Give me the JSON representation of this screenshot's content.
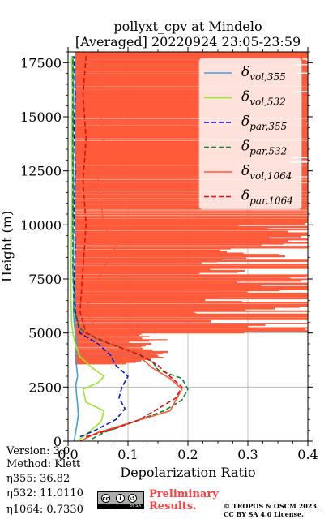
{
  "chart_data": {
    "type": "line",
    "title": "pollyxt_cpv at Mindelo",
    "subtitle": "[Averaged] 20220924 23:05-23:59",
    "xlabel": "Depolarization Ratio",
    "ylabel": "Height (m)",
    "xlim": [
      0,
      0.4
    ],
    "ylim": [
      0,
      18000
    ],
    "xticks": [
      0.0,
      0.1,
      0.2,
      0.3,
      0.4
    ],
    "xtick_labels": [
      "0.0",
      "0.1",
      "0.2",
      "0.3",
      "0.4"
    ],
    "yticks": [
      0,
      2500,
      5000,
      7500,
      10000,
      12500,
      15000,
      17500
    ],
    "ytick_labels": [
      "0",
      "2500",
      "5000",
      "7500",
      "10000",
      "12500",
      "15000",
      "17500"
    ],
    "grid": true,
    "legend_position": "top-right",
    "series": [
      {
        "name": "δvol,355",
        "legend_main": "δ",
        "legend_sub": "vol,355",
        "color": "#3fa0e0",
        "dash": "solid",
        "points": [
          [
            0.01,
            0
          ],
          [
            0.012,
            300
          ],
          [
            0.015,
            800
          ],
          [
            0.017,
            1200
          ],
          [
            0.016,
            1700
          ],
          [
            0.014,
            2200
          ],
          [
            0.013,
            2600
          ],
          [
            0.016,
            3000
          ],
          [
            0.014,
            3500
          ],
          [
            0.013,
            4000
          ],
          [
            0.015,
            4500
          ],
          [
            0.012,
            5000
          ],
          [
            0.01,
            5500
          ],
          [
            0.009,
            6000
          ],
          [
            0.01,
            7000
          ],
          [
            0.008,
            8000
          ],
          [
            0.009,
            9000
          ],
          [
            0.008,
            10000
          ],
          [
            0.009,
            12000
          ],
          [
            0.008,
            14000
          ],
          [
            0.009,
            16000
          ],
          [
            0.008,
            17800
          ]
        ]
      },
      {
        "name": "δvol,532",
        "legend_main": "δ",
        "legend_sub": "vol,532",
        "color": "#9ae82a",
        "dash": "solid",
        "points": [
          [
            0.015,
            0
          ],
          [
            0.03,
            300
          ],
          [
            0.055,
            900
          ],
          [
            0.06,
            1400
          ],
          [
            0.03,
            1800
          ],
          [
            0.025,
            2400
          ],
          [
            0.05,
            2700
          ],
          [
            0.06,
            3000
          ],
          [
            0.04,
            3400
          ],
          [
            0.02,
            3900
          ],
          [
            0.012,
            4500
          ],
          [
            0.008,
            5000
          ],
          [
            0.006,
            5500
          ],
          [
            0.005,
            6500
          ],
          [
            0.005,
            8000
          ],
          [
            0.006,
            10000
          ],
          [
            0.007,
            12000
          ],
          [
            0.006,
            14000
          ],
          [
            0.007,
            16000
          ],
          [
            0.006,
            17800
          ]
        ]
      },
      {
        "name": "δpar,355",
        "legend_main": "δ",
        "legend_sub": "par,355",
        "color": "#0018d0",
        "dash": "6,3",
        "points": [
          [
            0.02,
            200
          ],
          [
            0.045,
            500
          ],
          [
            0.08,
            1000
          ],
          [
            0.095,
            1500
          ],
          [
            0.085,
            2000
          ],
          [
            0.09,
            2500
          ],
          [
            0.1,
            3000
          ],
          [
            0.08,
            3500
          ],
          [
            0.07,
            4000
          ],
          [
            0.05,
            4500
          ],
          [
            0.02,
            5000
          ],
          [
            0.012,
            6000
          ],
          [
            0.01,
            7500
          ],
          [
            0.012,
            9000
          ],
          [
            0.01,
            10500
          ],
          [
            0.012,
            12500
          ],
          [
            0.01,
            14500
          ],
          [
            0.012,
            16000
          ],
          [
            0.01,
            17800
          ]
        ]
      },
      {
        "name": "δpar,532",
        "legend_main": "δ",
        "legend_sub": "par,532",
        "color": "#108030",
        "dash": "6,3",
        "points": [
          [
            0.04,
            100
          ],
          [
            0.06,
            400
          ],
          [
            0.11,
            900
          ],
          [
            0.16,
            1400
          ],
          [
            0.19,
            1900
          ],
          [
            0.2,
            2400
          ],
          [
            0.19,
            2900
          ],
          [
            0.15,
            3300
          ],
          [
            0.14,
            3700
          ],
          [
            0.1,
            4200
          ],
          [
            0.05,
            4700
          ],
          [
            0.02,
            5200
          ],
          [
            0.01,
            6000
          ],
          [
            0.008,
            8000
          ],
          [
            0.008,
            10000
          ],
          [
            0.008,
            12000
          ],
          [
            0.008,
            14000
          ],
          [
            0.008,
            16000
          ],
          [
            0.008,
            17800
          ]
        ]
      },
      {
        "name": "δvol,1064",
        "legend_main": "δ",
        "legend_sub": "vol,1064",
        "color": "#ff5a3a",
        "dash": "solid",
        "points": [
          [
            0.02,
            0
          ],
          [
            0.05,
            400
          ],
          [
            0.11,
            900
          ],
          [
            0.17,
            1400
          ],
          [
            0.18,
            1900
          ],
          [
            0.19,
            2400
          ],
          [
            0.17,
            2900
          ],
          [
            0.14,
            3400
          ],
          [
            0.12,
            3900
          ],
          [
            0.09,
            4400
          ],
          [
            0.05,
            5000
          ],
          [
            0.03,
            6000
          ],
          [
            0.04,
            7000
          ],
          [
            0.06,
            8000
          ],
          [
            0.08,
            9000
          ],
          [
            0.06,
            10000
          ],
          [
            0.05,
            12000
          ],
          [
            0.06,
            14000
          ],
          [
            0.05,
            16000
          ],
          [
            0.06,
            17800
          ]
        ]
      },
      {
        "name": "δpar,1064",
        "legend_main": "δ",
        "legend_sub": "par,1064",
        "color": "#e01010",
        "dash": "6,3",
        "points": [
          [
            0.03,
            200
          ],
          [
            0.08,
            600
          ],
          [
            0.12,
            1000
          ],
          [
            0.15,
            1500
          ],
          [
            0.18,
            2000
          ],
          [
            0.19,
            2500
          ],
          [
            0.17,
            3000
          ],
          [
            0.15,
            3500
          ],
          [
            0.12,
            4000
          ],
          [
            0.07,
            4500
          ],
          [
            0.03,
            5000
          ],
          [
            0.02,
            6000
          ],
          [
            0.025,
            8000
          ],
          [
            0.03,
            10000
          ],
          [
            0.025,
            12000
          ],
          [
            0.03,
            14000
          ],
          [
            0.025,
            16000
          ],
          [
            0.03,
            17800
          ]
        ]
      }
    ]
  },
  "info": {
    "version": "Version: 3.0",
    "method": "Method: Klett",
    "eta355": "η355:  36.82",
    "eta532": "η532: 11.0110",
    "eta1064": "η1064: 0.7330"
  },
  "footer": {
    "cc_label": "BY SA",
    "prelim_line1": "Preliminary",
    "prelim_line2": "Results.",
    "credit_line1": "© TROPOS & OSCM 2023.",
    "credit_line2": "CC BY SA 4.0 License."
  },
  "colors": {
    "accent": "#ff4040",
    "noise": "#ff5a3a"
  }
}
